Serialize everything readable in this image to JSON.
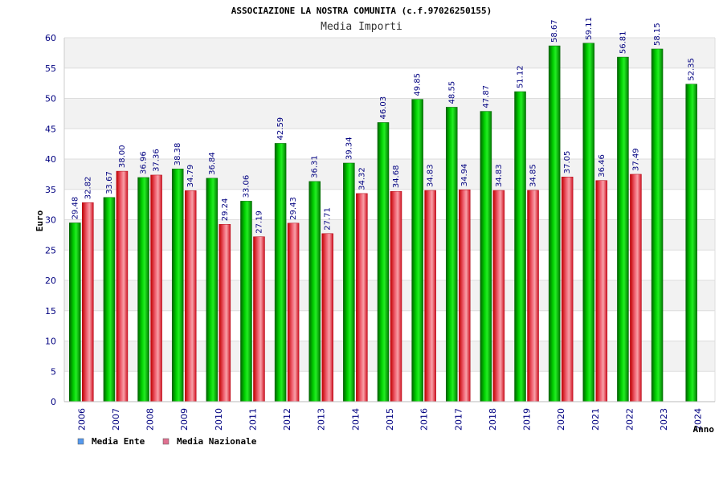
{
  "chart_data": {
    "type": "bar",
    "title": "ASSOCIAZIONE LA NOSTRA COMUNITA (c.f.97026250155)",
    "subtitle": "Media Importi",
    "xlabel": "Anno",
    "ylabel": "Euro",
    "ylim": [
      0,
      60
    ],
    "yticks": [
      0,
      5,
      10,
      15,
      20,
      25,
      30,
      35,
      40,
      45,
      50,
      55,
      60
    ],
    "grid": true,
    "legend_position": "bottom-left",
    "categories": [
      "2006",
      "2007",
      "2008",
      "2009",
      "2010",
      "2011",
      "2012",
      "2013",
      "2014",
      "2015",
      "2016",
      "2017",
      "2018",
      "2019",
      "2020",
      "2021",
      "2022",
      "2023",
      "2024"
    ],
    "series": [
      {
        "name": "Media Ente",
        "color": "#00b000",
        "legend_color": "#5599ee",
        "values": [
          29.48,
          33.67,
          36.96,
          38.38,
          36.84,
          33.06,
          42.59,
          36.31,
          39.34,
          46.03,
          49.85,
          48.55,
          47.87,
          51.12,
          58.67,
          59.11,
          56.81,
          58.15,
          52.35
        ],
        "labels": [
          "29.48",
          "33.67",
          "36.96",
          "38.38",
          "36.84",
          "33.06",
          "42.59",
          "36.31",
          "39.34",
          "46.03",
          "49.85",
          "48.55",
          "47.87",
          "51.12",
          "58.67",
          "59.11",
          "56.81",
          "58.15",
          "52.35"
        ]
      },
      {
        "name": "Media Nazionale",
        "color": "#e02020",
        "legend_color": "#e07090",
        "values": [
          32.82,
          38.0,
          37.36,
          34.79,
          29.24,
          27.19,
          29.43,
          27.71,
          34.32,
          34.68,
          34.83,
          34.94,
          34.83,
          34.85,
          37.05,
          36.46,
          37.49,
          null,
          null
        ],
        "labels": [
          "32.82",
          "38.00",
          "37.36",
          "34.79",
          "29.24",
          "27.19",
          "29.43",
          "27.71",
          "34.32",
          "34.68",
          "34.83",
          "34.94",
          "34.83",
          "34.85",
          "37.05",
          "36.46",
          "37.49",
          null,
          null
        ]
      }
    ]
  }
}
